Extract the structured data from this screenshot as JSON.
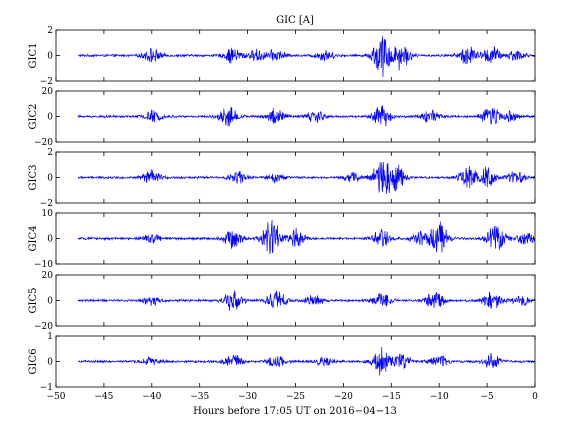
{
  "chart_data": {
    "type": "line",
    "title": "GIC [A]",
    "xlabel": "Hours before  17:05 UT on 2016−04−13",
    "xlim": [
      -50,
      0
    ],
    "x_data_range": [
      -47.7,
      0
    ],
    "xticks": [
      -50,
      -45,
      -40,
      -35,
      -30,
      -25,
      -20,
      -15,
      -10,
      -5,
      0
    ],
    "xtick_labels": [
      "−50",
      "−45",
      "−40",
      "−35",
      "−30",
      "−25",
      "−20",
      "−15",
      "−10",
      "−5",
      "0"
    ],
    "line_color": "#0000ff",
    "grid": false,
    "panels": [
      {
        "ylabel": "GIC1",
        "ylim": [
          -2,
          2
        ],
        "yticks": [
          -2,
          0,
          2
        ],
        "ytick_labels": [
          "−2",
          "0",
          "2"
        ],
        "activity": [
          {
            "t": -40,
            "amp": 0.6
          },
          {
            "t": -31.5,
            "amp": 0.7
          },
          {
            "t": -29,
            "amp": 0.5
          },
          {
            "t": -27,
            "amp": 0.5
          },
          {
            "t": -22,
            "amp": 0.5
          },
          {
            "t": -16,
            "amp": 1.9
          },
          {
            "t": -14,
            "amp": 1.2
          },
          {
            "t": -7,
            "amp": 0.9
          },
          {
            "t": -4.5,
            "amp": 0.8
          },
          {
            "t": -2,
            "amp": 0.5
          }
        ]
      },
      {
        "ylabel": "GIC2",
        "ylim": [
          -20,
          20
        ],
        "yticks": [
          -20,
          0,
          20
        ],
        "ytick_labels": [
          "−20",
          "0",
          "20"
        ],
        "activity": [
          {
            "t": -40,
            "amp": 5
          },
          {
            "t": -32,
            "amp": 9
          },
          {
            "t": -27,
            "amp": 8
          },
          {
            "t": -23,
            "amp": 6
          },
          {
            "t": -16,
            "amp": 9
          },
          {
            "t": -11,
            "amp": 6
          },
          {
            "t": -4.5,
            "amp": 10
          },
          {
            "t": -2.5,
            "amp": 5
          }
        ]
      },
      {
        "ylabel": "GIC3",
        "ylim": [
          -2,
          2
        ],
        "yticks": [
          -2,
          0,
          2
        ],
        "ytick_labels": [
          "−2",
          "0",
          "2"
        ],
        "activity": [
          {
            "t": -40,
            "amp": 0.6
          },
          {
            "t": -31,
            "amp": 0.5
          },
          {
            "t": -27,
            "amp": 0.4
          },
          {
            "t": -19,
            "amp": 0.4
          },
          {
            "t": -16,
            "amp": 1.8
          },
          {
            "t": -14.5,
            "amp": 1.2
          },
          {
            "t": -7,
            "amp": 0.9
          },
          {
            "t": -5,
            "amp": 0.8
          },
          {
            "t": -2,
            "amp": 0.5
          }
        ]
      },
      {
        "ylabel": "GIC4",
        "ylim": [
          -10,
          10
        ],
        "yticks": [
          -10,
          0,
          10
        ],
        "ytick_labels": [
          "−10",
          "0",
          "10"
        ],
        "activity": [
          {
            "t": -40,
            "amp": 2
          },
          {
            "t": -31.5,
            "amp": 4
          },
          {
            "t": -27.5,
            "amp": 9
          },
          {
            "t": -25,
            "amp": 4
          },
          {
            "t": -16,
            "amp": 4
          },
          {
            "t": -12,
            "amp": 3
          },
          {
            "t": -10,
            "amp": 7
          },
          {
            "t": -4,
            "amp": 6
          },
          {
            "t": -1,
            "amp": 3
          }
        ]
      },
      {
        "ylabel": "GIC5",
        "ylim": [
          -20,
          20
        ],
        "yticks": [
          -20,
          0,
          20
        ],
        "ytick_labels": [
          "−20",
          "0",
          "20"
        ],
        "activity": [
          {
            "t": -40,
            "amp": 4
          },
          {
            "t": -31.5,
            "amp": 10
          },
          {
            "t": -27,
            "amp": 9
          },
          {
            "t": -23,
            "amp": 5
          },
          {
            "t": -16,
            "amp": 7
          },
          {
            "t": -10.5,
            "amp": 9
          },
          {
            "t": -4.5,
            "amp": 8
          },
          {
            "t": -1.5,
            "amp": 4
          }
        ]
      },
      {
        "ylabel": "GIC6",
        "ylim": [
          -1,
          1
        ],
        "yticks": [
          -1,
          0,
          1
        ],
        "ytick_labels": [
          "−1",
          "0",
          "1"
        ],
        "activity": [
          {
            "t": -40,
            "amp": 0.2
          },
          {
            "t": -31.5,
            "amp": 0.3
          },
          {
            "t": -27,
            "amp": 0.3
          },
          {
            "t": -22,
            "amp": 0.2
          },
          {
            "t": -16,
            "amp": 0.6
          },
          {
            "t": -14,
            "amp": 0.4
          },
          {
            "t": -10,
            "amp": 0.3
          },
          {
            "t": -4.5,
            "amp": 0.3
          }
        ]
      }
    ]
  }
}
